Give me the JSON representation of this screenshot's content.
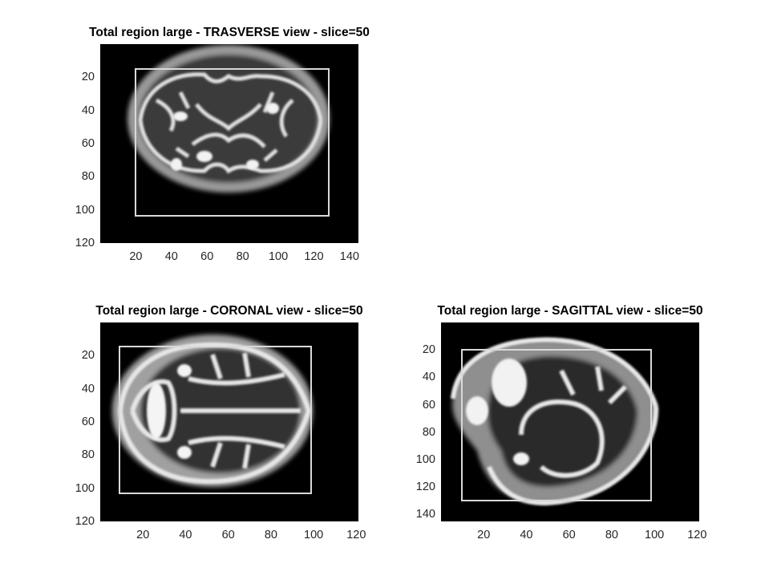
{
  "figure": {
    "background": "#ffffff",
    "panels": [
      {
        "id": "transverse",
        "title": "Total region large - TRASVERSE view - slice=50",
        "x_ticks": [
          "20",
          "40",
          "60",
          "80",
          "100",
          "120",
          "140"
        ],
        "y_ticks": [
          "20",
          "40",
          "60",
          "80",
          "100",
          "120"
        ],
        "x_range": [
          0,
          145
        ],
        "y_range": [
          0,
          120
        ],
        "x_tick_values": [
          20,
          40,
          60,
          80,
          100,
          120,
          140
        ],
        "y_tick_values": [
          20,
          40,
          60,
          80,
          100,
          120
        ],
        "roi_box_data": [
          20,
          14,
          128,
          103
        ]
      },
      {
        "id": "coronal",
        "title": "Total region large - CORONAL view - slice=50",
        "x_ticks": [
          "20",
          "40",
          "60",
          "80",
          "100",
          "120"
        ],
        "y_ticks": [
          "20",
          "40",
          "60",
          "80",
          "100",
          "120"
        ],
        "x_range": [
          0,
          121
        ],
        "y_range": [
          0,
          120
        ],
        "x_tick_values": [
          20,
          40,
          60,
          80,
          100,
          120
        ],
        "y_tick_values": [
          20,
          40,
          60,
          80,
          100,
          120
        ],
        "roi_box_data": [
          9,
          14,
          99,
          103
        ]
      },
      {
        "id": "sagittal",
        "title": "Total region large - SAGITTAL view - slice=50",
        "x_ticks": [
          "20",
          "40",
          "60",
          "80",
          "100",
          "120"
        ],
        "y_ticks": [
          "20",
          "40",
          "60",
          "80",
          "100",
          "120",
          "140"
        ],
        "x_range": [
          0,
          121
        ],
        "y_range": [
          0,
          145
        ],
        "x_tick_values": [
          20,
          40,
          60,
          80,
          100,
          120
        ],
        "y_tick_values": [
          20,
          40,
          60,
          80,
          100,
          120,
          140
        ],
        "roi_box_data": [
          9,
          19,
          99,
          128
        ]
      }
    ],
    "colormap": "gray",
    "roi_box_color": "#d9d9d9"
  }
}
